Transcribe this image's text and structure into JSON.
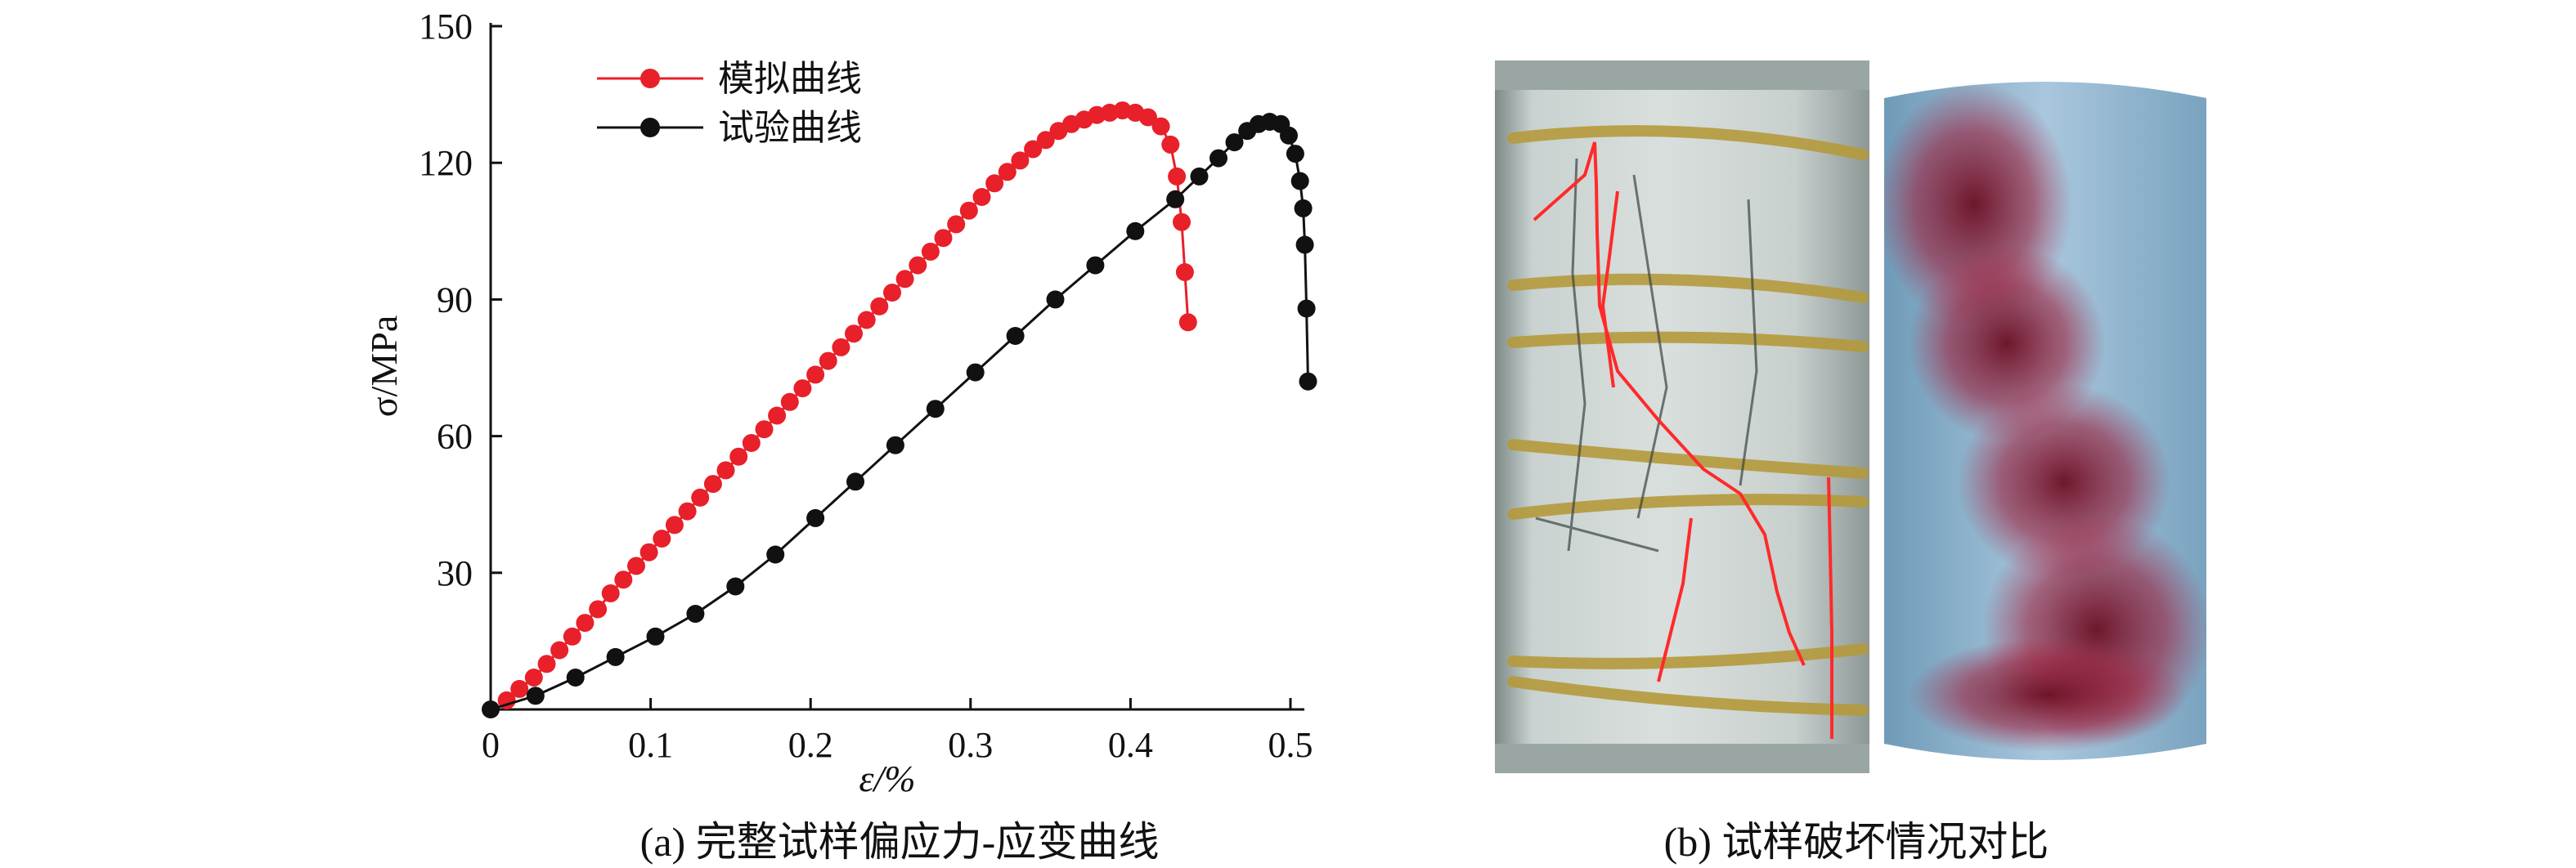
{
  "chart_data": {
    "type": "line",
    "xlabel": "ε/%",
    "ylabel": "σ/MPa",
    "xlim": [
      0,
      0.5
    ],
    "ylim": [
      0,
      150
    ],
    "xticks": [
      "0",
      "0.1",
      "0.2",
      "0.3",
      "0.4",
      "0.5"
    ],
    "yticks": [
      "30",
      "60",
      "90",
      "120",
      "150"
    ],
    "legend_position": "top-left",
    "series": [
      {
        "name": "模拟曲线",
        "color": "#e8202a",
        "points": [
          [
            0.01,
            2
          ],
          [
            0.018,
            4.5
          ],
          [
            0.027,
            7
          ],
          [
            0.035,
            10
          ],
          [
            0.043,
            13
          ],
          [
            0.051,
            16
          ],
          [
            0.059,
            19
          ],
          [
            0.067,
            22
          ],
          [
            0.075,
            25.5
          ],
          [
            0.083,
            28.5
          ],
          [
            0.091,
            31.5
          ],
          [
            0.099,
            34.5
          ],
          [
            0.107,
            37.5
          ],
          [
            0.115,
            40.5
          ],
          [
            0.123,
            43.5
          ],
          [
            0.131,
            46.5
          ],
          [
            0.139,
            49.5
          ],
          [
            0.147,
            52.5
          ],
          [
            0.155,
            55.5
          ],
          [
            0.163,
            58.5
          ],
          [
            0.171,
            61.5
          ],
          [
            0.179,
            64.5
          ],
          [
            0.187,
            67.5
          ],
          [
            0.195,
            70.5
          ],
          [
            0.203,
            73.5
          ],
          [
            0.211,
            76.5
          ],
          [
            0.219,
            79.5
          ],
          [
            0.227,
            82.5
          ],
          [
            0.235,
            85.5
          ],
          [
            0.243,
            88.5
          ],
          [
            0.251,
            91.5
          ],
          [
            0.259,
            94.5
          ],
          [
            0.267,
            97.5
          ],
          [
            0.275,
            100.5
          ],
          [
            0.283,
            103.5
          ],
          [
            0.291,
            106.5
          ],
          [
            0.299,
            109.5
          ],
          [
            0.307,
            112.5
          ],
          [
            0.315,
            115.5
          ],
          [
            0.323,
            118
          ],
          [
            0.331,
            120.5
          ],
          [
            0.339,
            123
          ],
          [
            0.347,
            125
          ],
          [
            0.355,
            127
          ],
          [
            0.363,
            128.5
          ],
          [
            0.371,
            129.5
          ],
          [
            0.379,
            130.5
          ],
          [
            0.387,
            131
          ],
          [
            0.395,
            131.5
          ],
          [
            0.403,
            131
          ],
          [
            0.411,
            130
          ],
          [
            0.419,
            128
          ],
          [
            0.425,
            124
          ],
          [
            0.429,
            117
          ],
          [
            0.432,
            107
          ],
          [
            0.434,
            96
          ],
          [
            0.436,
            85
          ]
        ]
      },
      {
        "name": "试验曲线",
        "color": "#111111",
        "points": [
          [
            0.0,
            0
          ],
          [
            0.028,
            3
          ],
          [
            0.053,
            7
          ],
          [
            0.078,
            11.5
          ],
          [
            0.103,
            16
          ],
          [
            0.128,
            21
          ],
          [
            0.153,
            27
          ],
          [
            0.178,
            34
          ],
          [
            0.203,
            42
          ],
          [
            0.228,
            50
          ],
          [
            0.253,
            58
          ],
          [
            0.278,
            66
          ],
          [
            0.303,
            74
          ],
          [
            0.328,
            82
          ],
          [
            0.353,
            90
          ],
          [
            0.378,
            97.5
          ],
          [
            0.403,
            105
          ],
          [
            0.428,
            112
          ],
          [
            0.443,
            117
          ],
          [
            0.455,
            121
          ],
          [
            0.465,
            124.5
          ],
          [
            0.473,
            127
          ],
          [
            0.48,
            128.5
          ],
          [
            0.487,
            129
          ],
          [
            0.494,
            128.5
          ],
          [
            0.499,
            126
          ],
          [
            0.503,
            122
          ],
          [
            0.506,
            116
          ],
          [
            0.508,
            110
          ],
          [
            0.509,
            102
          ],
          [
            0.51,
            88
          ],
          [
            0.511,
            72
          ]
        ]
      }
    ]
  },
  "captions": {
    "a": "(a) 完整试样偏应力-应变曲线",
    "b": "(b) 试样破坏情况对比"
  }
}
